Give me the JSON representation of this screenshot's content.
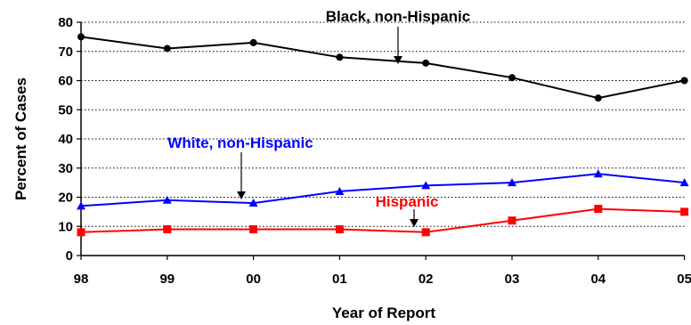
{
  "chart_data": {
    "type": "line",
    "xlabel": "Year of Report",
    "ylabel": "Percent of Cases",
    "categories": [
      "98",
      "99",
      "00",
      "01",
      "02",
      "03",
      "04",
      "05"
    ],
    "ylim": [
      0,
      80
    ],
    "yticks": [
      0,
      10,
      20,
      30,
      40,
      50,
      60,
      70,
      80
    ],
    "grid": "horizontal dotted",
    "legend": "inline labels with arrows",
    "series": [
      {
        "name": "Black, non-Hispanic",
        "color": "#000000",
        "marker": "circle",
        "values": [
          75,
          71,
          73,
          68,
          66,
          61,
          54,
          60
        ]
      },
      {
        "name": "White, non-Hispanic",
        "color": "#0000ff",
        "marker": "triangle",
        "values": [
          17,
          19,
          18,
          22,
          24,
          25,
          28,
          25
        ]
      },
      {
        "name": "Hispanic",
        "color": "#ff0000",
        "marker": "square",
        "values": [
          8,
          9,
          9,
          9,
          8,
          12,
          16,
          15
        ]
      }
    ]
  }
}
